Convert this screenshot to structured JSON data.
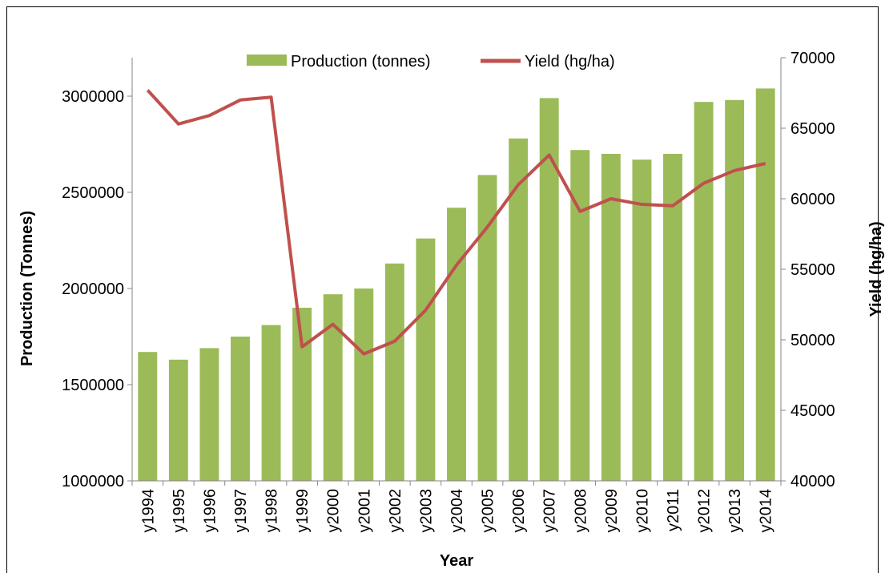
{
  "chart_data": {
    "type": "combo",
    "x_label": "Year",
    "y_label": "Production (Tonnes)",
    "y2_label": "Yield (hg/ha)",
    "categories": [
      "y1994",
      "y1995",
      "y1996",
      "y1997",
      "y1998",
      "y1999",
      "y2000",
      "y2001",
      "y2002",
      "y2003",
      "y2004",
      "y2005",
      "y2006",
      "y2007",
      "y2008",
      "y2009",
      "y2010",
      "y2011",
      "y2012",
      "y2013",
      "y2014"
    ],
    "series": [
      {
        "name": "Production (tonnes)",
        "type": "bar",
        "color": "#9bbb59",
        "values": [
          1670000,
          1630000,
          1690000,
          1750000,
          1810000,
          1900000,
          1970000,
          2000000,
          2130000,
          2260000,
          2420000,
          2590000,
          2780000,
          2990000,
          2720000,
          2700000,
          2670000,
          2700000,
          2970000,
          2980000,
          3040000
        ]
      },
      {
        "name": "Yield (hg/ha)",
        "type": "line",
        "axis": "y2",
        "color": "#c0504d",
        "values": [
          67700,
          65300,
          65900,
          67000,
          67200,
          49500,
          51100,
          49000,
          49900,
          52100,
          55300,
          58000,
          61000,
          63100,
          59100,
          60000,
          59600,
          59500,
          61100,
          62000,
          62500
        ]
      }
    ],
    "ylim": [
      1000000,
      3200000
    ],
    "yticks": [
      1000000,
      1500000,
      2000000,
      2500000,
      3000000
    ],
    "y2lim": [
      40000,
      70000
    ],
    "y2ticks": [
      40000,
      45000,
      50000,
      55000,
      60000,
      65000,
      70000
    ],
    "legend": "top"
  }
}
